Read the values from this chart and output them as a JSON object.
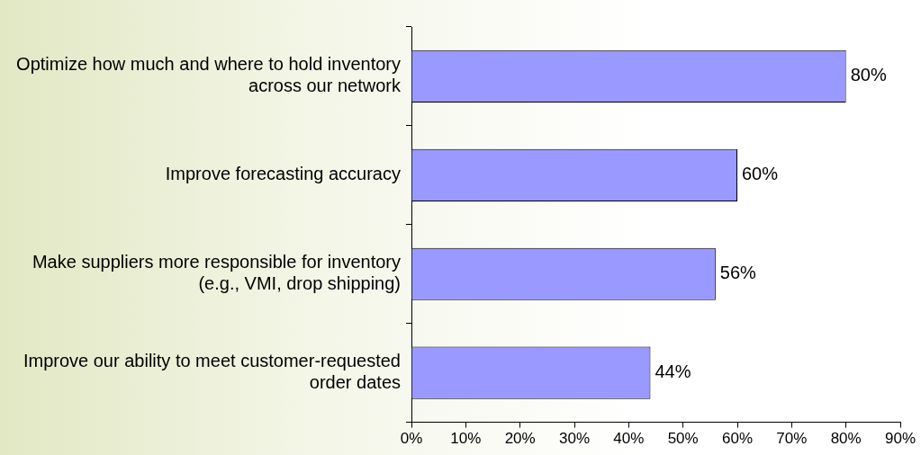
{
  "chart_data": {
    "type": "bar",
    "orientation": "horizontal",
    "categories": [
      "Optimize how much and where to hold inventory across our network",
      "Improve forecasting accuracy",
      "Make suppliers more responsible for inventory (e.g., VMI, drop shipping)",
      "Improve our ability to meet customer-requested order dates"
    ],
    "values": [
      80,
      60,
      56,
      44
    ],
    "color": "#9999ff",
    "value_labels": [
      "80%",
      "60%",
      "56%",
      "44%"
    ],
    "xlim": [
      0,
      90
    ],
    "xticks": [
      {
        "value": 0,
        "label": "0%"
      },
      {
        "value": 10,
        "label": "10%"
      },
      {
        "value": 20,
        "label": "20%"
      },
      {
        "value": 30,
        "label": "30%"
      },
      {
        "value": 40,
        "label": "40%"
      },
      {
        "value": 50,
        "label": "50%"
      },
      {
        "value": 60,
        "label": "60%"
      },
      {
        "value": 70,
        "label": "70%"
      },
      {
        "value": 80,
        "label": "80%"
      },
      {
        "value": 90,
        "label": "90%"
      }
    ],
    "grid": false,
    "legend": false
  }
}
